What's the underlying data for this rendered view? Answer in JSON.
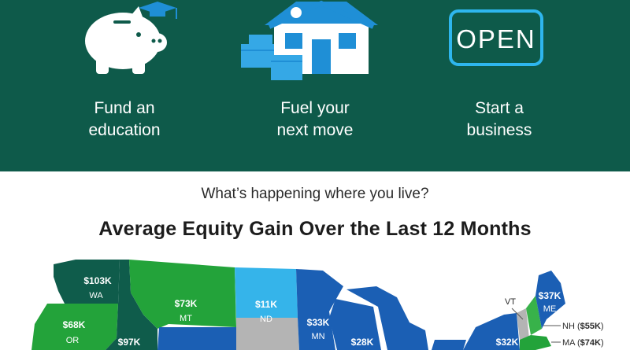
{
  "panels": [
    {
      "label": "Fund an\neducation",
      "icon": "piggy-bank-graduation-cap-icon"
    },
    {
      "label": "Fuel your\nnext move",
      "icon": "house-with-moving-boxes-icon"
    },
    {
      "label": "Start a\nbusiness",
      "icon": "open-sign-icon"
    }
  ],
  "open_sign_text": "OPEN",
  "subheading": "What’s happening where you live?",
  "headline": "Average Equity Gain Over the Last 12 Months",
  "states": {
    "wa": {
      "value": "$103K",
      "abbr": "WA"
    },
    "or": {
      "value": "$68K",
      "abbr": "OR"
    },
    "id": {
      "value": "$97K",
      "abbr": ""
    },
    "mt": {
      "value": "$73K",
      "abbr": "MT"
    },
    "nd": {
      "value": "$11K",
      "abbr": "ND"
    },
    "mn": {
      "value": "$33K",
      "abbr": "MN"
    },
    "wi": {
      "value": "$28K",
      "abbr": ""
    },
    "ny": {
      "value": "$32K",
      "abbr": ""
    },
    "me": {
      "value": "$37K",
      "abbr": "ME"
    },
    "vt": {
      "abbr": "VT"
    },
    "nh": {
      "abbr": "NH",
      "value": "$55K"
    },
    "ma": {
      "abbr": "MA",
      "value": "$74K"
    }
  },
  "colors": {
    "header_bg": "#0e5a4a",
    "dark_teal": "#0f5c4b",
    "green": "#23a33a",
    "blue": "#1b5fb4",
    "light_blue": "#35b4ea",
    "gray": "#b4b4b4",
    "light_green": "#38b24a"
  }
}
